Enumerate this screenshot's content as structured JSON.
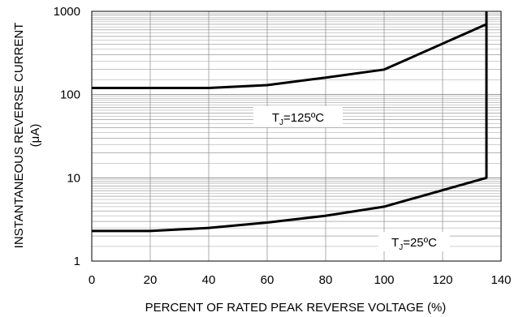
{
  "chart_data": {
    "type": "line",
    "xlabel": "PERCENT OF RATED PEAK REVERSE VOLTAGE (%)",
    "ylabel": {
      "line1": "INSTANTANEOUS REVERSE CURRENT",
      "line2": "(μA)"
    },
    "xlim": [
      0,
      140
    ],
    "ylim": [
      1,
      1000
    ],
    "yscale": "log",
    "grid": true,
    "x_ticks": [
      0,
      20,
      40,
      60,
      80,
      100,
      120,
      140
    ],
    "x_tick_labels": [
      "0",
      "20",
      "40",
      "60",
      "80",
      "100",
      "120",
      "140"
    ],
    "y_ticks": [
      1,
      10,
      100,
      1000
    ],
    "y_tick_labels": [
      "1",
      "10",
      "100",
      "1000"
    ],
    "series": [
      {
        "label": {
          "prefix": "T",
          "sub": "J",
          "suffix": "=125ºC"
        },
        "x": [
          0,
          40,
          60,
          80,
          100,
          135,
          135
        ],
        "y": [
          120,
          120,
          130,
          160,
          200,
          700,
          1000
        ]
      },
      {
        "label": {
          "prefix": "T",
          "sub": "J",
          "suffix": "=25ºC"
        },
        "x": [
          0,
          20,
          40,
          60,
          80,
          100,
          135,
          135
        ],
        "y": [
          2.3,
          2.3,
          2.5,
          2.9,
          3.5,
          4.5,
          10,
          1000
        ]
      }
    ],
    "colors": {
      "line": "#000000",
      "grid": "#888888",
      "frame": "#000000",
      "label_box": "#ffffff"
    }
  }
}
